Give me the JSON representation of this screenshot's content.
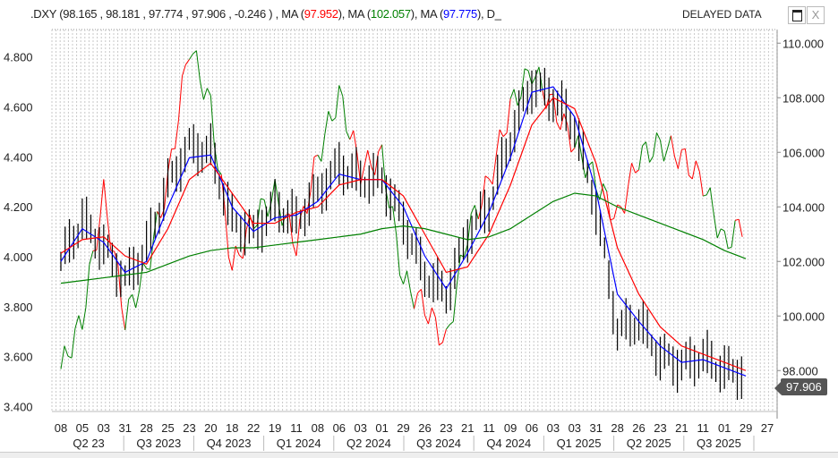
{
  "header": {
    "symbol": ".DXY",
    "ohlc_text": "(98.165 , 98.181 , 97.774 , 97.906 , -0.246 ) ,",
    "ma_label": "MA",
    "ma1": "97.952",
    "ma1_color": "#ff0000",
    "ma2": "102.057",
    "ma2_color": "#008000",
    "ma3": "97.775",
    "ma3_color": "#0000ff",
    "trailing": "D_",
    "delayed": "DELAYED DATA",
    "maximize_icon": "window-icon",
    "close_label": "X"
  },
  "last_price": "97.906",
  "chart_data": {
    "type": "line",
    "x_tick_labels": [
      "08",
      "05",
      "03",
      "31",
      "28",
      "25",
      "23",
      "20",
      "18",
      "22",
      "19",
      "11",
      "08",
      "06",
      "03",
      "01",
      "29",
      "26",
      "23",
      "21",
      "11",
      "09",
      "06",
      "03",
      "03",
      "31",
      "28",
      "26",
      "23",
      "21",
      "11",
      "01",
      "29",
      "27"
    ],
    "quarter_labels": [
      "Q2 23",
      "Q3 2023",
      "Q4 2023",
      "Q1 2024",
      "Q2 2024",
      "Q3 2024",
      "Q4 2024",
      "Q1 2025",
      "Q2 2025",
      "Q3 2025"
    ],
    "right_axis": {
      "ticks": [
        "98.000",
        "100.000",
        "102.000",
        "104.000",
        "106.000",
        "108.000",
        "110.000"
      ],
      "range": [
        96.5,
        110.5
      ]
    },
    "left_axis": {
      "ticks": [
        "3.400",
        "3.600",
        "3.800",
        "4.000",
        "4.200",
        "4.400",
        "4.600",
        "4.800"
      ],
      "range": [
        3.38,
        4.91
      ]
    },
    "grid": "vertical dotted",
    "series": [
      {
        "axis": "right",
        "color": "#000000",
        "style": "ohlc",
        "values": [
          102.0,
          103.5,
          102.5,
          101.3,
          102.5,
          104.8,
          106.2,
          106.0,
          103.5,
          103.0,
          104.0,
          103.5,
          104.5,
          105.5,
          105.0,
          105.0,
          103.5,
          101.5,
          100.8,
          103.0,
          104.0,
          106.5,
          108.5,
          108.0,
          107.0,
          104.0,
          99.5,
          99.8,
          98.5,
          98.2,
          98.5,
          98.0,
          97.9,
          null
        ]
      },
      {
        "axis": "right",
        "color": "#0000ff",
        "values": [
          102.0,
          103.2,
          102.7,
          101.6,
          102.0,
          104.0,
          105.8,
          105.9,
          104.0,
          103.1,
          103.6,
          103.7,
          104.2,
          105.2,
          105.0,
          105.0,
          104.0,
          102.2,
          101.0,
          102.3,
          103.8,
          105.8,
          108.2,
          108.4,
          107.3,
          104.6,
          100.8,
          99.8,
          98.9,
          98.3,
          98.4,
          98.1,
          97.8,
          null
        ]
      },
      {
        "axis": "right",
        "color": "#ff0000",
        "values": [
          102.3,
          102.8,
          102.9,
          102.2,
          101.9,
          103.2,
          105.0,
          105.6,
          104.5,
          103.4,
          103.4,
          103.8,
          104.0,
          104.8,
          105.0,
          105.0,
          104.4,
          103.0,
          101.6,
          101.8,
          103.0,
          104.8,
          107.0,
          108.0,
          107.6,
          105.6,
          102.5,
          100.8,
          99.6,
          98.9,
          98.6,
          98.3,
          98.0,
          null
        ]
      },
      {
        "axis": "right",
        "color": "#008000",
        "values": [
          101.2,
          101.3,
          101.4,
          101.5,
          101.6,
          101.9,
          102.2,
          102.4,
          102.5,
          102.5,
          102.6,
          102.7,
          102.8,
          102.9,
          103.0,
          103.2,
          103.3,
          103.2,
          103.0,
          102.8,
          102.9,
          103.2,
          103.7,
          104.2,
          104.5,
          104.4,
          104.0,
          103.7,
          103.4,
          103.1,
          102.8,
          102.4,
          102.1,
          null
        ]
      },
      {
        "axis": "left",
        "colors": [
          "#008000",
          "#ff0000"
        ],
        "values": [
          3.55,
          3.75,
          4.25,
          3.75,
          3.95,
          4.3,
          4.85,
          4.6,
          3.95,
          4.15,
          4.25,
          4.05,
          4.4,
          4.65,
          4.35,
          4.4,
          3.9,
          3.8,
          3.65,
          4.1,
          4.3,
          4.6,
          4.75,
          4.6,
          4.45,
          4.3,
          4.15,
          4.4,
          4.45,
          4.4,
          4.3,
          4.05,
          4.15,
          null
        ]
      }
    ]
  }
}
